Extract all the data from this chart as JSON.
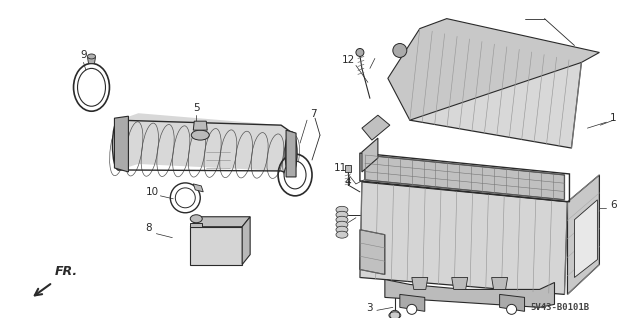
{
  "background_color": "#ffffff",
  "figsize": [
    6.4,
    3.19
  ],
  "dpi": 100,
  "line_color": "#2a2a2a",
  "label_color": "#2a2a2a",
  "watermark": "5V43-B0101B",
  "label_fontsize": 7.5,
  "gray_fill": "#c8c8c8",
  "light_gray": "#e0e0e0",
  "mid_gray": "#b0b0b0",
  "dark_gray": "#888888"
}
